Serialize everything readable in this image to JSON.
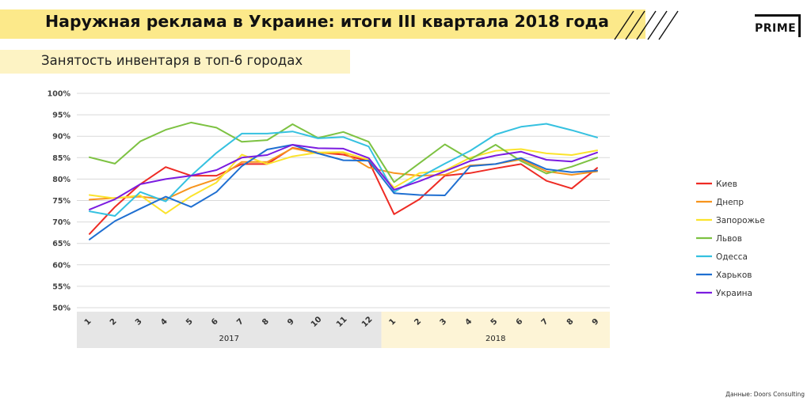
{
  "header": {
    "title": "Наружная реклама в Украине: итоги III квартала 2018 года",
    "subtitle": "Занятость инвентаря в  топ-6 городах",
    "logo_text": "PRIME"
  },
  "footer": {
    "source": "Данные: Doors Consulting"
  },
  "colors": {
    "title_bar": "#fce98a",
    "subtitle_bar": "#fdf3c4",
    "band_2017": "#e6e6e6",
    "band_2018": "#fdf4d6",
    "grid": "#d9d9d9"
  },
  "chart_data": {
    "type": "line",
    "ylim": [
      50,
      100
    ],
    "yticks": [
      "50%",
      "55%",
      "60%",
      "65%",
      "70%",
      "75%",
      "80%",
      "85%",
      "90%",
      "95%",
      "100%"
    ],
    "categories": [
      "1",
      "2",
      "3",
      "4",
      "5",
      "6",
      "7",
      "8",
      "9",
      "10",
      "11",
      "12",
      "1",
      "2",
      "3",
      "4",
      "5",
      "6",
      "7",
      "8",
      "9"
    ],
    "year_groups": [
      {
        "label": "2017",
        "count": 12
      },
      {
        "label": "2018",
        "count": 9
      }
    ],
    "grid": true,
    "legend_position": "right",
    "series": [
      {
        "name": "Киев",
        "color": "#ee2b24",
        "values": [
          67.2,
          73.5,
          78.8,
          82.8,
          80.8,
          80.8,
          83.5,
          83.5,
          87.3,
          86.2,
          85.7,
          84.2,
          71.8,
          75.3,
          80.8,
          81.4,
          82.5,
          83.5,
          79.6,
          77.8,
          82.6
        ]
      },
      {
        "name": "Днепр",
        "color": "#f7941d",
        "values": [
          75.2,
          75.6,
          75.9,
          75.3,
          78.0,
          80.0,
          84.0,
          84.0,
          87.2,
          86.0,
          86.2,
          82.7,
          81.4,
          80.8,
          81.0,
          83.2,
          83.5,
          84.6,
          81.8,
          81.0,
          81.8
        ]
      },
      {
        "name": "Запорожье",
        "color": "#fbe32c",
        "values": [
          76.3,
          75.5,
          76.2,
          72.0,
          76.0,
          79.2,
          85.7,
          83.5,
          85.3,
          86.2,
          86.3,
          84.5,
          78.0,
          81.4,
          82.0,
          85.0,
          86.6,
          87.0,
          86.0,
          85.6,
          86.7
        ]
      },
      {
        "name": "Львов",
        "color": "#7dc242",
        "values": [
          85.1,
          83.6,
          88.8,
          91.5,
          93.2,
          92.0,
          88.7,
          89.1,
          92.8,
          89.6,
          91.0,
          88.7,
          79.3,
          83.7,
          88.1,
          84.6,
          88.0,
          84.2,
          81.3,
          82.9,
          85.0
        ]
      },
      {
        "name": "Одесса",
        "color": "#35c1e0",
        "values": [
          72.5,
          71.4,
          77.0,
          74.8,
          80.8,
          86.1,
          90.6,
          90.6,
          91.1,
          89.5,
          89.8,
          87.6,
          77.0,
          80.4,
          83.6,
          86.6,
          90.4,
          92.2,
          92.9,
          91.4,
          89.7
        ]
      },
      {
        "name": "Харьков",
        "color": "#1f6fd1",
        "values": [
          65.9,
          70.2,
          73.1,
          75.9,
          73.5,
          77.0,
          83.0,
          86.9,
          88.0,
          86.0,
          84.4,
          84.3,
          76.7,
          76.3,
          76.2,
          83.0,
          83.5,
          84.9,
          82.3,
          81.6,
          82.0
        ]
      },
      {
        "name": "Украина",
        "color": "#7b1ce0",
        "values": [
          72.9,
          75.3,
          78.8,
          80.0,
          80.8,
          82.1,
          85.0,
          85.6,
          88.0,
          87.2,
          87.1,
          84.9,
          77.5,
          79.5,
          81.8,
          84.2,
          85.5,
          86.4,
          84.5,
          84.1,
          86.2
        ]
      }
    ]
  }
}
